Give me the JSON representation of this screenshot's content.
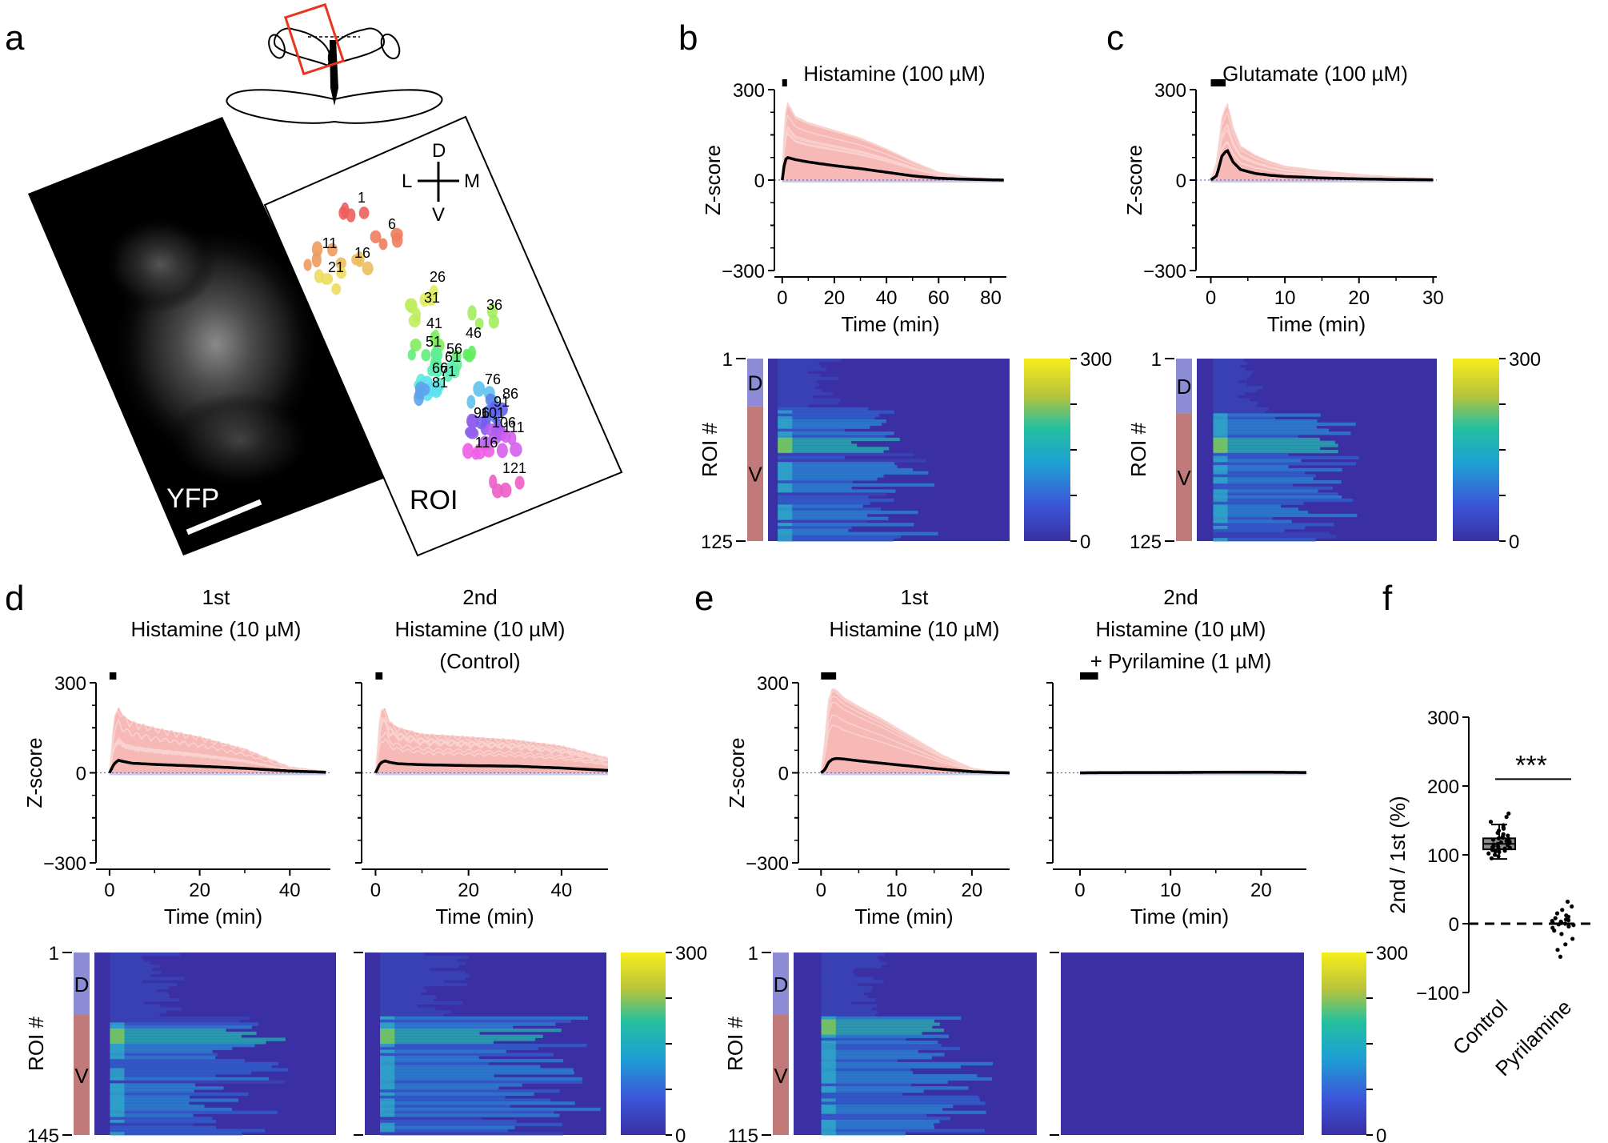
{
  "figure": {
    "panel_a": {
      "label": "a",
      "image_label_left": "YFP",
      "image_label_right": "ROI",
      "compass": {
        "dorsal": "D",
        "ventral": "V",
        "lateral": "L",
        "medial": "M"
      },
      "roi_numbers": [
        "1",
        "6",
        "11",
        "16",
        "21",
        "26",
        "31",
        "36",
        "41",
        "46",
        "51",
        "56",
        "61",
        "66",
        "71",
        "76",
        "81",
        "86",
        "91",
        "96",
        "101",
        "106",
        "111",
        "116",
        "121"
      ]
    },
    "colors": {
      "trace_fill": "#f6b9b6",
      "trace_light": "#f9d3d0",
      "mean_line": "#000000",
      "dorsal_bar": "#8c8cd6",
      "ventral_bar": "#c07a7a",
      "heat_bg": "#3a2fa3"
    }
  },
  "chart_data": [
    {
      "panel": "b",
      "type": "line",
      "title": "Histamine (100 µM)",
      "xlabel": "Time (min)",
      "ylabel": "Z-score",
      "xlim": [
        -3,
        86
      ],
      "ylim": [
        -300,
        300
      ],
      "xticks": [
        "0",
        "20",
        "40",
        "60",
        "80"
      ],
      "yticks": [
        "300",
        "0",
        "−300"
      ],
      "stimulus": [
        0,
        1.5
      ],
      "series": [
        {
          "name": "mean",
          "x": [
            0,
            1,
            2,
            5,
            10,
            20,
            30,
            40,
            50,
            60,
            70,
            80,
            85
          ],
          "values": [
            0,
            65,
            75,
            68,
            60,
            48,
            38,
            26,
            14,
            6,
            3,
            1,
            0
          ]
        }
      ],
      "envelope_max": [
        0,
        200,
        250,
        205,
        185,
        160,
        135,
        100,
        60,
        25,
        10,
        4,
        2
      ]
    },
    {
      "panel": "c",
      "type": "line",
      "title": "Glutamate (100 µM)",
      "xlabel": "Time (min)",
      "ylabel": "Z-score",
      "xlim": [
        -2,
        30.5
      ],
      "ylim": [
        -300,
        300
      ],
      "xticks": [
        "0",
        "10",
        "20",
        "30"
      ],
      "yticks": [
        "300",
        "0",
        "−300"
      ],
      "stimulus": [
        0,
        2
      ],
      "series": [
        {
          "name": "mean",
          "x": [
            0,
            0.8,
            1.5,
            2.2,
            3,
            4,
            6,
            8,
            10,
            15,
            20,
            25,
            30
          ],
          "values": [
            0,
            15,
            80,
            100,
            60,
            35,
            22,
            16,
            12,
            7,
            4,
            2,
            1
          ]
        }
      ],
      "envelope_max": [
        0,
        60,
        200,
        250,
        170,
        110,
        80,
        60,
        45,
        30,
        18,
        10,
        5
      ]
    },
    {
      "panel": "b",
      "type": "heatmap",
      "ylabel": "ROI #",
      "yticks": [
        "1",
        "125"
      ],
      "groups": [
        "D",
        "V"
      ],
      "colorbar_ticks": [
        "300",
        "0"
      ],
      "onset_min": 0,
      "duration_min": 60,
      "xlim": [
        -3,
        86
      ]
    },
    {
      "panel": "c",
      "type": "heatmap",
      "ylabel": "ROI #",
      "yticks": [
        "1",
        "125"
      ],
      "groups": [
        "D",
        "V"
      ],
      "colorbar_ticks": [
        "300",
        "0"
      ],
      "onset_min": 0,
      "duration_min": 20,
      "xlim": [
        -2,
        30.5
      ]
    },
    {
      "panel": "d",
      "type": "line",
      "label": "d",
      "title_top": "1st",
      "title_bottom": "Histamine (10 µM)",
      "xlabel": "Time (min)",
      "ylabel": "Z-score",
      "xlim": [
        -3,
        49
      ],
      "ylim": [
        -300,
        300
      ],
      "xticks": [
        "0",
        "20",
        "40"
      ],
      "yticks": [
        "300",
        "0",
        "−300"
      ],
      "stimulus": [
        0,
        1.5
      ],
      "series": [
        {
          "name": "mean",
          "x": [
            0,
            1,
            2,
            3,
            5,
            10,
            20,
            30,
            40,
            48
          ],
          "values": [
            0,
            30,
            42,
            38,
            32,
            28,
            22,
            15,
            6,
            2
          ]
        }
      ],
      "envelope_max": [
        0,
        180,
        220,
        190,
        170,
        150,
        120,
        80,
        20,
        5
      ]
    },
    {
      "panel": "d2",
      "type": "line",
      "title_top": "2nd",
      "title_middle": "Histamine (10 µM)",
      "title_bottom": "(Control)",
      "xlabel": "Time (min)",
      "xlim": [
        -3,
        50
      ],
      "ylim": [
        -300,
        300
      ],
      "xticks": [
        "0",
        "20",
        "40"
      ],
      "stimulus": [
        0,
        1.5
      ],
      "series": [
        {
          "name": "mean",
          "x": [
            0,
            1,
            2,
            3,
            5,
            10,
            20,
            30,
            40,
            50
          ],
          "values": [
            0,
            32,
            40,
            35,
            30,
            27,
            24,
            22,
            16,
            8
          ]
        }
      ],
      "envelope_max": [
        0,
        200,
        220,
        170,
        150,
        130,
        120,
        110,
        90,
        50
      ]
    },
    {
      "panel": "d",
      "type": "heatmap",
      "ylabel": "ROI #",
      "yticks": [
        "1",
        "145"
      ],
      "groups": [
        "D",
        "V"
      ],
      "colorbar_ticks": [
        "300",
        "0"
      ],
      "onset_min": 0,
      "duration_min": 40,
      "xlim": [
        -3,
        49
      ]
    },
    {
      "panel": "d2",
      "type": "heatmap",
      "onset_min": 0,
      "duration_min": 50,
      "xlim": [
        -3,
        50
      ]
    },
    {
      "panel": "e",
      "type": "line",
      "label": "e",
      "title_top": "1st",
      "title_bottom": "Histamine (10 µM)",
      "xlabel": "Time (min)",
      "ylabel": "Z-score",
      "xlim": [
        -3,
        25
      ],
      "ylim": [
        -300,
        300
      ],
      "xticks": [
        "0",
        "10",
        "20"
      ],
      "yticks": [
        "300",
        "0",
        "−300"
      ],
      "stimulus": [
        0,
        2
      ],
      "series": [
        {
          "name": "mean",
          "x": [
            0,
            0.5,
            1,
            1.5,
            2,
            3,
            5,
            8,
            12,
            16,
            20,
            23,
            25
          ],
          "values": [
            0,
            10,
            35,
            45,
            48,
            46,
            40,
            32,
            22,
            12,
            4,
            1,
            0
          ]
        }
      ],
      "envelope_max": [
        0,
        100,
        240,
        280,
        275,
        250,
        220,
        180,
        120,
        60,
        15,
        3,
        1
      ]
    },
    {
      "panel": "e2",
      "type": "line",
      "title_top": "2nd",
      "title_middle": "Histamine (10 µM)",
      "title_bottom": "+ Pyrilamine (1 µM)",
      "xlabel": "Time (min)",
      "xlim": [
        -3,
        25
      ],
      "ylim": [
        -300,
        300
      ],
      "xticks": [
        "0",
        "10",
        "20"
      ],
      "stimulus": [
        0,
        2
      ],
      "series": [
        {
          "name": "mean",
          "x": [
            0,
            5,
            10,
            15,
            20,
            25
          ],
          "values": [
            0,
            1,
            1,
            2,
            2,
            1
          ]
        }
      ],
      "envelope_max": [
        0,
        3,
        4,
        5,
        6,
        4
      ]
    },
    {
      "panel": "e",
      "type": "heatmap",
      "ylabel": "ROI #",
      "yticks": [
        "1",
        "115"
      ],
      "groups": [
        "D",
        "V"
      ],
      "colorbar_ticks": [
        "300",
        "0"
      ],
      "onset_min": 0,
      "duration_min": 20,
      "xlim": [
        -3,
        25
      ]
    },
    {
      "panel": "e2",
      "type": "heatmap",
      "onset_min": 0,
      "duration_min": 0,
      "xlim": [
        -3,
        25
      ]
    },
    {
      "panel": "f",
      "type": "scatter",
      "label": "f",
      "ylabel": "2nd / 1st (%)",
      "categories": [
        "Control",
        "Pyrilamine"
      ],
      "ylim": [
        -100,
        300
      ],
      "yticks": [
        "300",
        "200",
        "100",
        "0",
        "−100"
      ],
      "significance": "***",
      "box_control": {
        "q1": 108,
        "median": 116,
        "q3": 124,
        "whisker_low": 94,
        "whisker_high": 144
      },
      "points_control": [
        95,
        98,
        100,
        102,
        104,
        105,
        106,
        107,
        108,
        109,
        110,
        111,
        112,
        113,
        114,
        115,
        116,
        117,
        118,
        119,
        120,
        121,
        122,
        123,
        124,
        125,
        126,
        128,
        130,
        132,
        135,
        138,
        140,
        143,
        148,
        155,
        160
      ],
      "points_pyrilamine": [
        -48,
        -38,
        -30,
        -22,
        -15,
        -10,
        -6,
        -4,
        -2,
        -1,
        0,
        1,
        2,
        3,
        4,
        5,
        6,
        8,
        10,
        12,
        15,
        20,
        25,
        32
      ]
    }
  ]
}
